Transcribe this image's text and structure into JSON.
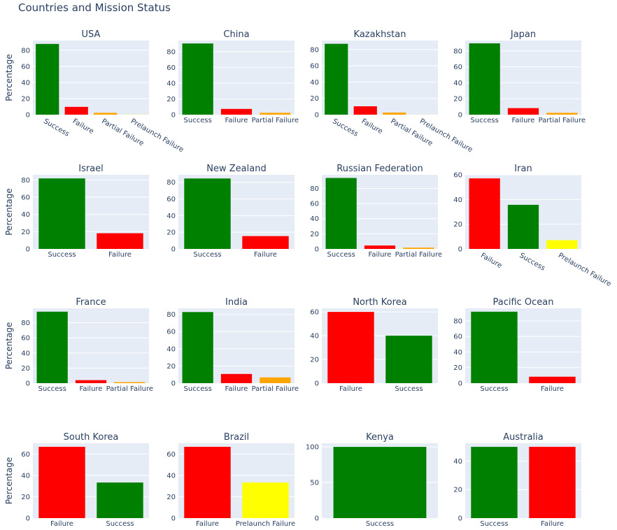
{
  "title": "Countries and Mission Status",
  "colors": {
    "Success": "#008000",
    "Failure": "#ff0000",
    "Partial Failure": "#ffa500",
    "Prelaunch Failure": "#ffff00"
  },
  "chart_data": [
    {
      "type": "bar",
      "title": "USA",
      "ylabel": "Percentage",
      "categories": [
        "Success",
        "Failure",
        "Partial Failure",
        "Prelaunch Failure"
      ],
      "values": [
        87.8,
        9.7,
        2.3,
        0.2
      ],
      "yticks": [
        0,
        20,
        40,
        60,
        80
      ],
      "ylim": [
        0,
        92
      ],
      "rotated_labels": true
    },
    {
      "type": "bar",
      "title": "China",
      "categories": [
        "Success",
        "Failure",
        "Partial Failure"
      ],
      "values": [
        90.3,
        7.3,
        2.4
      ],
      "yticks": [
        0,
        20,
        40,
        60,
        80
      ],
      "ylim": [
        0,
        94
      ]
    },
    {
      "type": "bar",
      "title": "Kazakhstan",
      "categories": [
        "Success",
        "Failure",
        "Partial Failure",
        "Prelaunch Failure"
      ],
      "values": [
        87.0,
        10.3,
        2.6,
        0.1
      ],
      "yticks": [
        0,
        20,
        40,
        60,
        80
      ],
      "ylim": [
        0,
        91
      ],
      "rotated_labels": true
    },
    {
      "type": "bar",
      "title": "Japan",
      "categories": [
        "Success",
        "Failure",
        "Partial Failure"
      ],
      "values": [
        89.5,
        8.2,
        2.3
      ],
      "yticks": [
        0,
        20,
        40,
        60,
        80
      ],
      "ylim": [
        0,
        93
      ]
    },
    {
      "type": "bar",
      "title": "Israel",
      "ylabel": "Percentage",
      "categories": [
        "Success",
        "Failure"
      ],
      "values": [
        81.8,
        18.2
      ],
      "yticks": [
        0,
        20,
        40,
        60,
        80
      ],
      "ylim": [
        0,
        86
      ]
    },
    {
      "type": "bar",
      "title": "New Zealand",
      "categories": [
        "Success",
        "Failure"
      ],
      "values": [
        84.6,
        15.4
      ],
      "yticks": [
        0,
        20,
        40,
        60,
        80
      ],
      "ylim": [
        0,
        89
      ]
    },
    {
      "type": "bar",
      "title": "Russian Federation",
      "categories": [
        "Success",
        "Failure",
        "Partial Failure"
      ],
      "values": [
        93.8,
        4.5,
        1.7
      ],
      "yticks": [
        0,
        20,
        40,
        60,
        80
      ],
      "ylim": [
        0,
        98
      ]
    },
    {
      "type": "bar",
      "title": "Iran",
      "categories": [
        "Failure",
        "Success",
        "Prelaunch Failure"
      ],
      "values": [
        57.1,
        35.7,
        7.1
      ],
      "yticks": [
        0,
        20,
        40,
        60
      ],
      "ylim": [
        0,
        60
      ],
      "rotated_labels": true
    },
    {
      "type": "bar",
      "title": "France",
      "ylabel": "Percentage",
      "categories": [
        "Success",
        "Failure",
        "Partial Failure"
      ],
      "values": [
        94.6,
        4.0,
        1.4
      ],
      "yticks": [
        0,
        20,
        40,
        60,
        80
      ],
      "ylim": [
        0,
        99
      ]
    },
    {
      "type": "bar",
      "title": "India",
      "categories": [
        "Success",
        "Failure",
        "Partial Failure"
      ],
      "values": [
        82.7,
        10.7,
        6.7
      ],
      "yticks": [
        0,
        20,
        40,
        60,
        80
      ],
      "ylim": [
        0,
        87
      ]
    },
    {
      "type": "bar",
      "title": "North Korea",
      "categories": [
        "Failure",
        "Success"
      ],
      "values": [
        60.0,
        40.0
      ],
      "yticks": [
        0,
        20,
        40,
        60
      ],
      "ylim": [
        0,
        63
      ]
    },
    {
      "type": "bar",
      "title": "Pacific Ocean",
      "categories": [
        "Success",
        "Failure"
      ],
      "values": [
        91.7,
        8.3
      ],
      "yticks": [
        0,
        20,
        40,
        60,
        80
      ],
      "ylim": [
        0,
        96
      ]
    },
    {
      "type": "bar",
      "title": "South Korea",
      "ylabel": "Percentage",
      "categories": [
        "Failure",
        "Success"
      ],
      "values": [
        66.7,
        33.3
      ],
      "yticks": [
        0,
        20,
        40,
        60
      ],
      "ylim": [
        0,
        70
      ]
    },
    {
      "type": "bar",
      "title": "Brazil",
      "categories": [
        "Failure",
        "Prelaunch Failure"
      ],
      "values": [
        66.7,
        33.3
      ],
      "yticks": [
        0,
        20,
        40,
        60
      ],
      "ylim": [
        0,
        70
      ]
    },
    {
      "type": "bar",
      "title": "Kenya",
      "categories": [
        "Success"
      ],
      "values": [
        100
      ],
      "yticks": [
        0,
        50,
        100
      ],
      "ylim": [
        0,
        105
      ]
    },
    {
      "type": "bar",
      "title": "Australia",
      "categories": [
        "Success",
        "Failure"
      ],
      "values": [
        50,
        50
      ],
      "yticks": [
        0,
        20,
        40
      ],
      "ylim": [
        0,
        52.5
      ]
    }
  ]
}
